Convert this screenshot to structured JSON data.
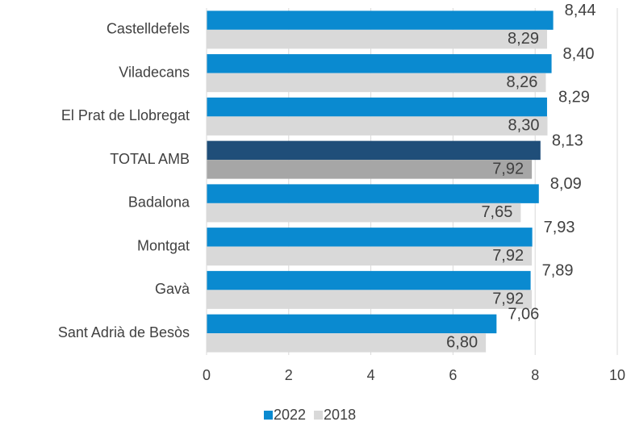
{
  "chart_data": {
    "type": "hbar",
    "categories": [
      "Castelldefels",
      "Viladecans",
      "El Prat de Llobregat",
      "TOTAL AMB",
      "Badalona",
      "Montgat",
      "Gavà",
      "Sant Adrià de Besòs"
    ],
    "series": [
      {
        "name": "2022",
        "color": "#0a8ad0",
        "colors": [
          "#0a8ad0",
          "#0a8ad0",
          "#0a8ad0",
          "#1f4e79",
          "#0a8ad0",
          "#0a8ad0",
          "#0a8ad0",
          "#0a8ad0"
        ],
        "values": [
          8.44,
          8.4,
          8.29,
          8.13,
          8.09,
          7.93,
          7.89,
          7.06
        ],
        "value_labels": [
          "8,44",
          "8,40",
          "8,29",
          "8,13",
          "8,09",
          "7,93",
          "7,89",
          "7,06"
        ]
      },
      {
        "name": "2018",
        "color": "#d9d9d9",
        "colors": [
          "#d9d9d9",
          "#d9d9d9",
          "#d9d9d9",
          "#a6a6a6",
          "#d9d9d9",
          "#d9d9d9",
          "#d9d9d9",
          "#d9d9d9"
        ],
        "values": [
          8.29,
          8.26,
          8.3,
          7.92,
          7.65,
          7.92,
          7.92,
          6.8
        ],
        "value_labels": [
          "8,29",
          "8,26",
          "8,30",
          "7,92",
          "7,65",
          "7,92",
          "7,92",
          "6,80"
        ]
      }
    ],
    "xlim": [
      0,
      10
    ],
    "xticks": [
      0,
      2,
      4,
      6,
      8,
      10
    ],
    "grid": true,
    "legend": "bottom"
  }
}
